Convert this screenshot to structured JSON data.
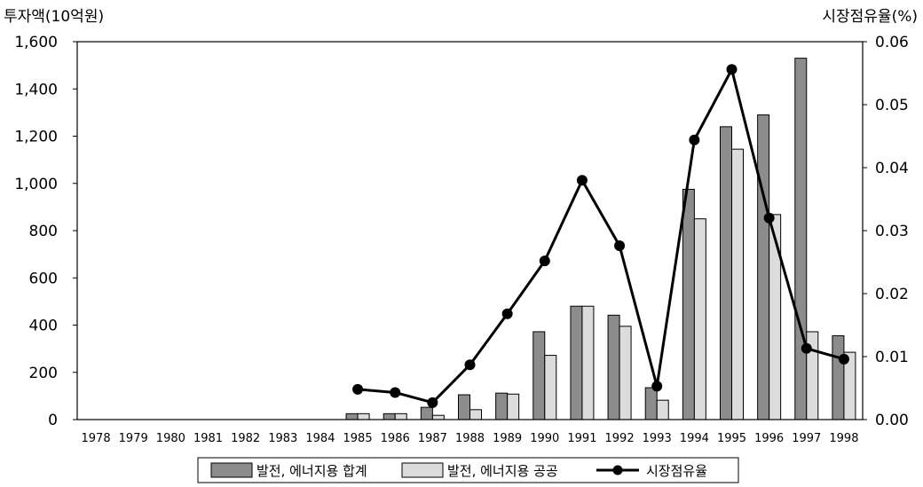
{
  "chart_data": {
    "type": "bar",
    "ylabel": "투자액(10억원)",
    "y2label": "시장점유율(%)",
    "categories": [
      "1978",
      "1979",
      "1980",
      "1981",
      "1982",
      "1983",
      "1984",
      "1985",
      "1986",
      "1987",
      "1988",
      "1989",
      "1990",
      "1991",
      "1992",
      "1993",
      "1994",
      "1995",
      "1996",
      "1997",
      "1998"
    ],
    "ylim": [
      0,
      1600
    ],
    "yticks": [
      0,
      200,
      400,
      600,
      800,
      1000,
      1200,
      1400,
      1600
    ],
    "ytick_labels": [
      "0",
      "200",
      "400",
      "600",
      "800",
      "1,000",
      "1,200",
      "1,400",
      "1,600"
    ],
    "y2lim": [
      0,
      0.06
    ],
    "y2ticks": [
      0,
      0.01,
      0.02,
      0.03,
      0.04,
      0.05,
      0.06
    ],
    "y2tick_labels": [
      "0.00",
      "0.01",
      "0.02",
      "0.03",
      "0.04",
      "0.05",
      "0.06"
    ],
    "grid": false,
    "legend_position": "bottom-center",
    "series": [
      {
        "name": "발전, 에너지용 합계",
        "type": "bar",
        "axis": "left",
        "color": "#8c8c8c",
        "values": [
          0,
          0,
          0,
          0,
          0,
          0,
          0,
          25,
          25,
          52,
          105,
          112,
          372,
          480,
          442,
          135,
          975,
          1240,
          1290,
          1530,
          355
        ]
      },
      {
        "name": "발전, 에너지용 공공",
        "type": "bar",
        "axis": "left",
        "color": "#dcdcdc",
        "values": [
          0,
          0,
          0,
          0,
          0,
          0,
          0,
          25,
          25,
          18,
          42,
          108,
          272,
          480,
          395,
          82,
          850,
          1145,
          868,
          372,
          285
        ]
      },
      {
        "name": "시장점유율",
        "type": "line",
        "axis": "right",
        "color": "#000000",
        "values": [
          null,
          null,
          null,
          null,
          null,
          null,
          null,
          0.0048,
          0.0043,
          0.0027,
          0.0087,
          0.0168,
          0.0252,
          0.038,
          0.0276,
          0.0053,
          0.0444,
          0.0556,
          0.032,
          0.0113,
          0.0096
        ]
      }
    ]
  }
}
